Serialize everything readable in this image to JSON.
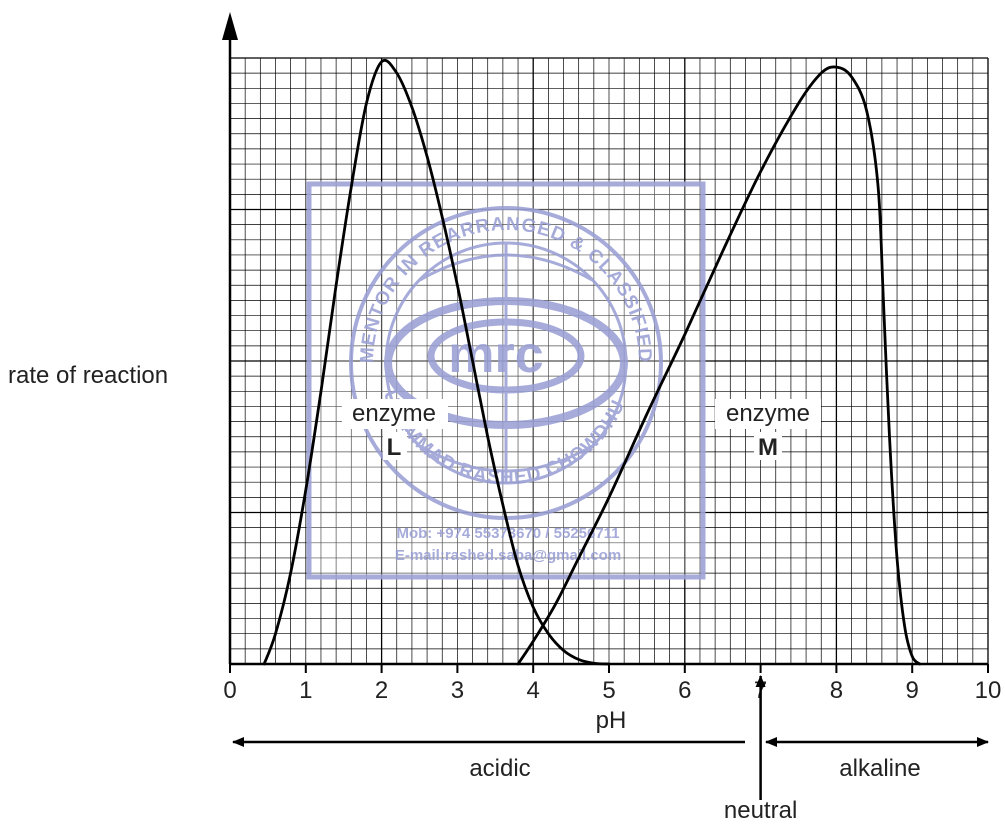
{
  "chart_data": {
    "type": "line",
    "xlabel": "pH",
    "ylabel": "rate of reaction",
    "xlim": [
      0,
      10
    ],
    "ylim": [
      0,
      8
    ],
    "x_ticks": [
      "0",
      "1",
      "2",
      "3",
      "4",
      "5",
      "6",
      "7",
      "8",
      "9",
      "10"
    ],
    "grid": true,
    "series": [
      {
        "label": "enzyme",
        "label_letter": "L",
        "points": [
          [
            0.45,
            0
          ],
          [
            0.6,
            0.4
          ],
          [
            0.8,
            1.2
          ],
          [
            1.0,
            2.3
          ],
          [
            1.2,
            3.6
          ],
          [
            1.4,
            5.0
          ],
          [
            1.6,
            6.3
          ],
          [
            1.8,
            7.4
          ],
          [
            2.0,
            7.95
          ],
          [
            2.2,
            7.8
          ],
          [
            2.4,
            7.35
          ],
          [
            2.6,
            6.7
          ],
          [
            2.8,
            5.9
          ],
          [
            3.0,
            5.0
          ],
          [
            3.2,
            4.0
          ],
          [
            3.4,
            3.0
          ],
          [
            3.6,
            2.1
          ],
          [
            3.8,
            1.3
          ],
          [
            4.0,
            0.75
          ],
          [
            4.2,
            0.4
          ],
          [
            4.4,
            0.18
          ],
          [
            4.6,
            0.06
          ],
          [
            4.8,
            0.01
          ],
          [
            5.0,
            0
          ]
        ]
      },
      {
        "label": "enzyme",
        "label_letter": "M",
        "points": [
          [
            3.8,
            0
          ],
          [
            4.0,
            0.3
          ],
          [
            4.3,
            0.8
          ],
          [
            4.6,
            1.4
          ],
          [
            5.0,
            2.2
          ],
          [
            5.5,
            3.3
          ],
          [
            6.0,
            4.35
          ],
          [
            6.5,
            5.45
          ],
          [
            7.0,
            6.5
          ],
          [
            7.5,
            7.4
          ],
          [
            7.8,
            7.8
          ],
          [
            8.0,
            7.88
          ],
          [
            8.2,
            7.75
          ],
          [
            8.4,
            7.3
          ],
          [
            8.55,
            6.3
          ],
          [
            8.62,
            4.8
          ],
          [
            8.7,
            3.0
          ],
          [
            8.8,
            1.4
          ],
          [
            8.9,
            0.5
          ],
          [
            9.0,
            0.1
          ],
          [
            9.1,
            0
          ]
        ]
      }
    ],
    "annotations": {
      "acidic": "acidic",
      "alkaline": "alkaline",
      "neutral": "neutral",
      "neutral_ph": 7
    }
  },
  "watermark": {
    "logo_text": "mrc",
    "ring_top": "MENTOR IN REARRANGED & CLASSIFIED",
    "ring_bottom": "MUHAMMAD RASHED CHOWDHURY",
    "phone": "Mob: +974 55373670 / 55256711",
    "email": "E-mail:rashed.saba@gmail.com",
    "color": "#9da3d6"
  }
}
